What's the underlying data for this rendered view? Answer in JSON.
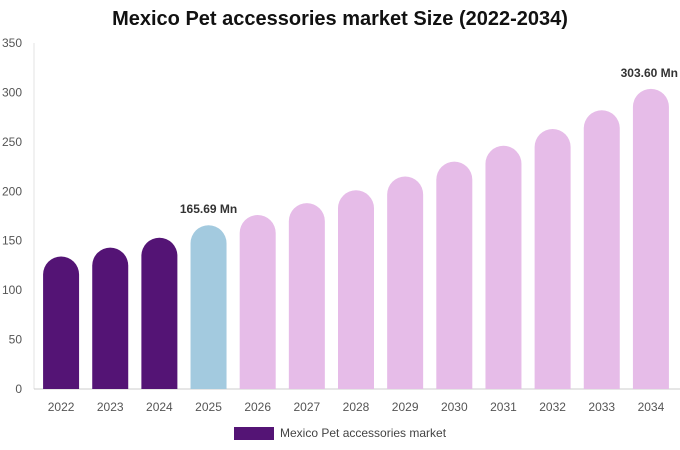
{
  "chart_data": {
    "type": "bar",
    "title": "Mexico Pet accessories market Size (2022-2034)",
    "categories": [
      "2022",
      "2023",
      "2024",
      "2025",
      "2026",
      "2027",
      "2028",
      "2029",
      "2030",
      "2031",
      "2032",
      "2033",
      "2034"
    ],
    "series": [
      {
        "name": "Mexico Pet accessories market",
        "values": [
          134,
          143,
          153,
          165.69,
          176,
          188,
          201,
          215,
          230,
          246,
          263,
          282,
          303.6
        ]
      }
    ],
    "data_labels": [
      {
        "category": "2025",
        "text": "165.69 Mn"
      },
      {
        "category": "2034",
        "text": "303.60 Mn"
      }
    ],
    "bar_colors": [
      "#541475",
      "#541475",
      "#541475",
      "#a3cadf",
      "#e6bce8",
      "#e6bce8",
      "#e6bce8",
      "#e6bce8",
      "#e6bce8",
      "#e6bce8",
      "#e6bce8",
      "#e6bce8",
      "#e6bce8"
    ],
    "ylim": [
      0,
      350
    ],
    "yticks": [
      0,
      50,
      100,
      150,
      200,
      250,
      300,
      350
    ],
    "xlabel": "",
    "ylabel": "",
    "grid": false,
    "legend_position": "bottom"
  }
}
